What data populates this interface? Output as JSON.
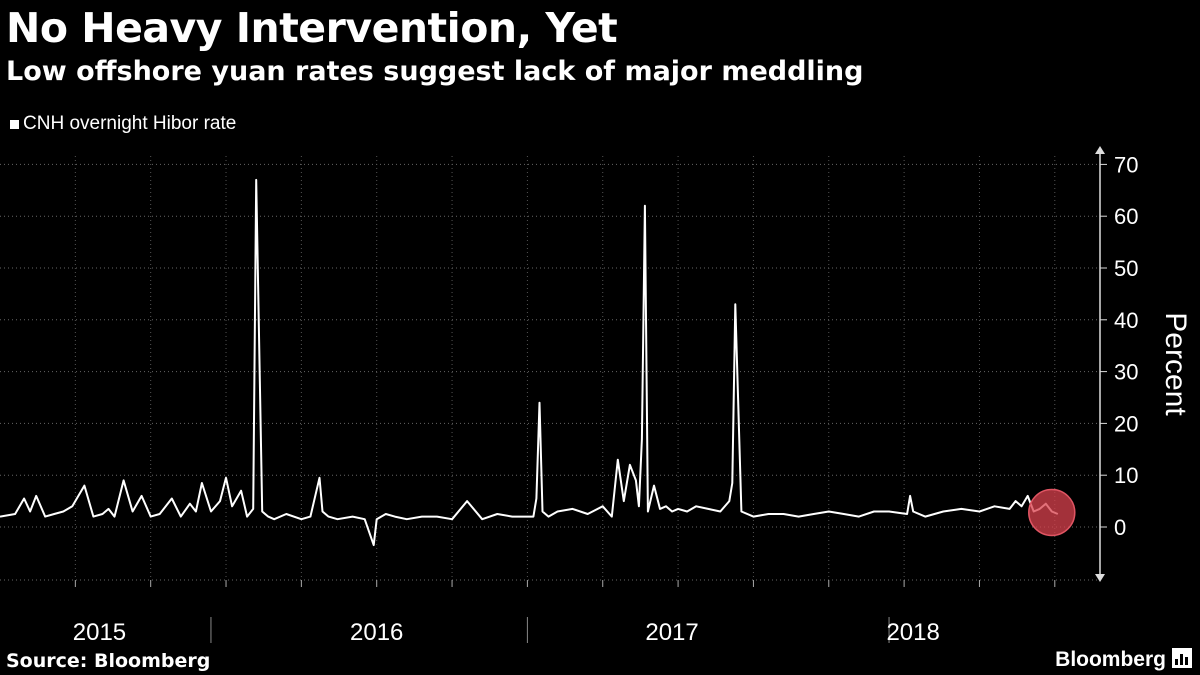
{
  "header": {
    "title": "No Heavy Intervention, Yet",
    "subtitle": "Low offshore yuan rates suggest lack of major meddling"
  },
  "footer": {
    "source": "Source: Bloomberg",
    "brand": "Bloomberg"
  },
  "colors": {
    "background": "#000000",
    "line": "#ffffff",
    "highlight": "#d9414e"
  },
  "chart_data": {
    "type": "line",
    "ylabel": "Percent",
    "ylim": [
      -10,
      70
    ],
    "yticks": [
      0,
      10,
      20,
      30,
      40,
      50,
      60,
      70
    ],
    "x_range": [
      "2014-09",
      "2018-04"
    ],
    "x_labels": [
      {
        "label": "2015",
        "at": 2015.0
      },
      {
        "label": "2016",
        "at": 2016.0
      },
      {
        "label": "2017",
        "at": 2017.0
      },
      {
        "label": "2018",
        "at": 2018.0
      }
    ],
    "grid": true,
    "legend_position": "top-left",
    "series": [
      {
        "name": "CNH overnight Hibor rate",
        "x": [
          2014.75,
          2014.8,
          2014.83,
          2014.85,
          2014.87,
          2014.9,
          2014.93,
          2014.96,
          2014.99,
          2015.03,
          2015.06,
          2015.09,
          2015.11,
          2015.13,
          2015.16,
          2015.19,
          2015.22,
          2015.25,
          2015.28,
          2015.32,
          2015.35,
          2015.38,
          2015.4,
          2015.42,
          2015.45,
          2015.48,
          2015.5,
          2015.52,
          2015.55,
          2015.57,
          2015.59,
          2015.6,
          2015.62,
          2015.64,
          2015.66,
          2015.7,
          2015.75,
          2015.78,
          2015.81,
          2015.82,
          2015.84,
          2015.87,
          2015.92,
          2015.96,
          2015.99,
          2016.0,
          2016.03,
          2016.06,
          2016.1,
          2016.15,
          2016.18,
          2016.2,
          2016.25,
          2016.3,
          2016.35,
          2016.4,
          2016.45,
          2016.52,
          2016.53,
          2016.54,
          2016.55,
          2016.57,
          2016.6,
          2016.65,
          2016.7,
          2016.75,
          2016.78,
          2016.8,
          2016.82,
          2016.84,
          2016.86,
          2016.87,
          2016.88,
          2016.89,
          2016.9,
          2016.92,
          2016.94,
          2016.96,
          2016.98,
          2017.0,
          2017.03,
          2017.06,
          2017.1,
          2017.14,
          2017.17,
          2017.18,
          2017.19,
          2017.21,
          2017.25,
          2017.3,
          2017.35,
          2017.4,
          2017.45,
          2017.5,
          2017.55,
          2017.6,
          2017.65,
          2017.7,
          2017.76,
          2017.77,
          2017.78,
          2017.82,
          2017.88,
          2017.94,
          2018.0,
          2018.05,
          2018.1,
          2018.12,
          2018.14,
          2018.16,
          2018.18,
          2018.2,
          2018.22,
          2018.24,
          2018.26
        ],
        "values": [
          2.0,
          2.5,
          5.5,
          3.0,
          6.0,
          2.0,
          2.5,
          3.0,
          4.0,
          8.0,
          2.0,
          2.5,
          3.5,
          2.0,
          9.0,
          3.0,
          6.0,
          2.0,
          2.5,
          5.5,
          2.0,
          4.5,
          3.0,
          8.5,
          3.0,
          5.0,
          9.5,
          4.0,
          7.0,
          2.0,
          3.5,
          67.0,
          3.0,
          2.0,
          1.5,
          2.5,
          1.5,
          2.0,
          9.5,
          3.0,
          2.0,
          1.5,
          2.0,
          1.5,
          -3.5,
          1.5,
          2.5,
          2.0,
          1.5,
          2.0,
          2.0,
          2.0,
          1.5,
          5.0,
          1.5,
          2.5,
          2.0,
          2.0,
          5.5,
          24.0,
          3.0,
          2.0,
          3.0,
          3.5,
          2.5,
          4.0,
          2.0,
          13.0,
          5.0,
          12.0,
          9.0,
          4.0,
          17.0,
          62.0,
          3.0,
          8.0,
          3.5,
          4.0,
          3.0,
          3.5,
          3.0,
          4.0,
          3.5,
          3.0,
          5.0,
          8.5,
          43.0,
          3.0,
          2.0,
          2.5,
          2.5,
          2.0,
          2.5,
          3.0,
          2.5,
          2.0,
          3.0,
          3.0,
          2.5,
          6.0,
          3.0,
          2.0,
          3.0,
          3.5,
          3.0,
          4.0,
          3.5,
          5.0,
          4.0,
          6.0,
          3.0,
          3.5,
          4.5,
          3.0,
          2.5
        ]
      }
    ],
    "highlight": {
      "x": 2018.24,
      "y": 2.8
    }
  }
}
